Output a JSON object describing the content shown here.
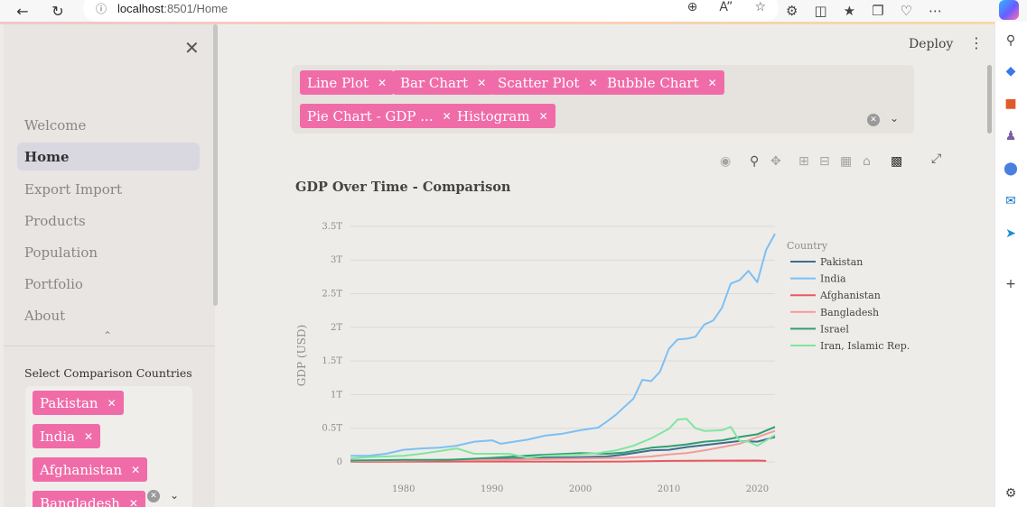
{
  "browser": {
    "url_host": "localhost",
    "url_path": ":8501/Home"
  },
  "sidebar": {
    "nav": [
      "Welcome",
      "Home",
      "Export Import",
      "Products",
      "Population",
      "Portfolio",
      "About"
    ],
    "active_index": 1,
    "select_label": "Select Comparison Countries",
    "selected_countries": [
      "Pakistan",
      "India",
      "Afghanistan",
      "Bangladesh"
    ]
  },
  "header": {
    "deploy_label": "Deploy"
  },
  "chart_types": [
    "Line Plot",
    "Bar Chart",
    "Scatter Plot",
    "Bubble Chart",
    "Pie Chart - GDP ...",
    "Histogram"
  ],
  "colors": {
    "tag": "#f06ca8",
    "Pakistan": "#3e6d8e",
    "India": "#7cc0f4",
    "Afghanistan": "#e8585e",
    "Bangladesh": "#f29b9b",
    "Israel": "#2f9e74",
    "Iran": "#7fe6a0"
  },
  "chart_data": {
    "type": "line",
    "title": "GDP Over Time - Comparison",
    "ylabel": "GDP (USD)",
    "xlabel": "",
    "legend_title": "Country",
    "legend_position": "right",
    "xlim": [
      1974,
      2022
    ],
    "ylim": [
      0,
      3.7
    ],
    "x_ticks": [
      1980,
      1990,
      2000,
      2010,
      2020
    ],
    "y_ticks": [
      {
        "value": 0,
        "label": "0"
      },
      {
        "value": 0.5,
        "label": "0.5T"
      },
      {
        "value": 1,
        "label": "1T"
      },
      {
        "value": 1.5,
        "label": "1.5T"
      },
      {
        "value": 2,
        "label": "2T"
      },
      {
        "value": 2.5,
        "label": "2.5T"
      },
      {
        "value": 3,
        "label": "3T"
      },
      {
        "value": 3.5,
        "label": "3.5T"
      }
    ],
    "grid": true,
    "series": [
      {
        "name": "Pakistan",
        "x": [
          1974,
          1980,
          1985,
          1990,
          1995,
          2000,
          2003,
          2005,
          2008,
          2010,
          2012,
          2014,
          2016,
          2018,
          2020,
          2022
        ],
        "y": [
          0.01,
          0.02,
          0.03,
          0.04,
          0.06,
          0.07,
          0.08,
          0.11,
          0.17,
          0.18,
          0.22,
          0.25,
          0.28,
          0.31,
          0.3,
          0.37
        ]
      },
      {
        "name": "India",
        "x": [
          1974,
          1976,
          1978,
          1980,
          1982,
          1984,
          1986,
          1988,
          1990,
          1991,
          1992,
          1994,
          1996,
          1998,
          2000,
          2002,
          2003,
          2004,
          2005,
          2006,
          2007,
          2008,
          2009,
          2010,
          2011,
          2012,
          2013,
          2014,
          2015,
          2016,
          2017,
          2018,
          2019,
          2020,
          2021,
          2022
        ],
        "y": [
          0.09,
          0.09,
          0.12,
          0.18,
          0.2,
          0.21,
          0.24,
          0.3,
          0.32,
          0.27,
          0.29,
          0.33,
          0.39,
          0.42,
          0.47,
          0.51,
          0.6,
          0.7,
          0.82,
          0.94,
          1.22,
          1.2,
          1.34,
          1.68,
          1.82,
          1.83,
          1.86,
          2.04,
          2.1,
          2.29,
          2.65,
          2.7,
          2.84,
          2.67,
          3.15,
          3.39
        ]
      },
      {
        "name": "Afghanistan",
        "x": [
          1974,
          1980,
          1990,
          2000,
          2005,
          2010,
          2015,
          2020,
          2021
        ],
        "y": [
          0.002,
          0.004,
          0.005,
          0.004,
          0.006,
          0.015,
          0.019,
          0.02,
          0.015
        ]
      },
      {
        "name": "Bangladesh",
        "x": [
          1974,
          1980,
          1985,
          1990,
          1995,
          2000,
          2005,
          2008,
          2010,
          2012,
          2014,
          2016,
          2018,
          2020,
          2022
        ],
        "y": [
          0.01,
          0.02,
          0.03,
          0.03,
          0.04,
          0.05,
          0.06,
          0.08,
          0.11,
          0.13,
          0.17,
          0.22,
          0.27,
          0.37,
          0.46
        ]
      },
      {
        "name": "Israel",
        "x": [
          1974,
          1980,
          1985,
          1990,
          1995,
          2000,
          2003,
          2005,
          2008,
          2010,
          2012,
          2014,
          2016,
          2018,
          2020,
          2022
        ],
        "y": [
          0.02,
          0.03,
          0.03,
          0.06,
          0.1,
          0.13,
          0.12,
          0.14,
          0.21,
          0.23,
          0.26,
          0.3,
          0.32,
          0.37,
          0.41,
          0.52
        ]
      },
      {
        "name": "Iran, Islamic Rep.",
        "x": [
          1974,
          1976,
          1978,
          1980,
          1982,
          1984,
          1986,
          1988,
          1990,
          1992,
          1994,
          1996,
          1998,
          2000,
          2002,
          2004,
          2006,
          2008,
          2010,
          2011,
          2012,
          2013,
          2014,
          2016,
          2017,
          2018,
          2019,
          2020,
          2022
        ],
        "y": [
          0.05,
          0.07,
          0.08,
          0.09,
          0.12,
          0.16,
          0.2,
          0.12,
          0.12,
          0.12,
          0.06,
          0.09,
          0.1,
          0.11,
          0.13,
          0.17,
          0.24,
          0.35,
          0.49,
          0.63,
          0.64,
          0.5,
          0.46,
          0.47,
          0.52,
          0.31,
          0.3,
          0.24,
          0.4
        ]
      }
    ]
  }
}
